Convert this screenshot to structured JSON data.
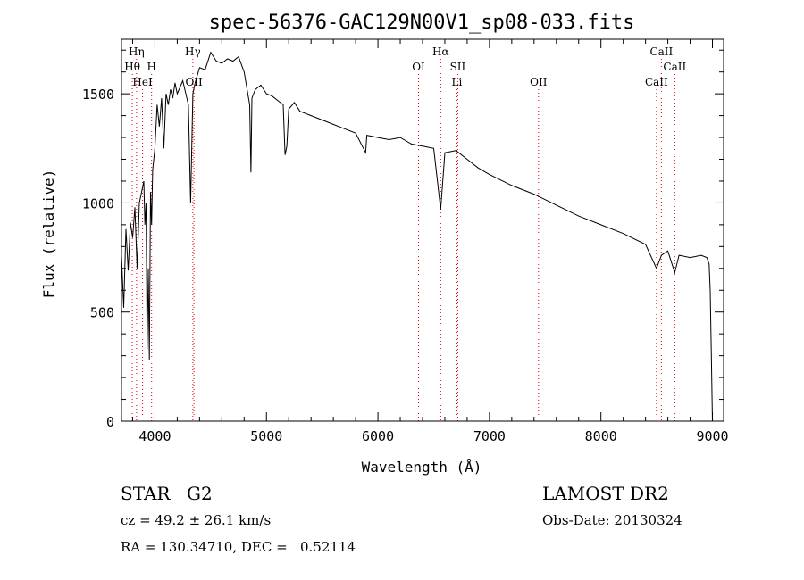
{
  "chart_data": {
    "type": "line",
    "title": "spec-56376-GAC129N00V1_sp08-033.fits",
    "xlabel": "Wavelength (Å)",
    "ylabel": "Flux (relative)",
    "xlim": [
      3700,
      9100
    ],
    "ylim": [
      0,
      1750
    ],
    "xticks": [
      4000,
      5000,
      6000,
      7000,
      8000,
      9000
    ],
    "yticks": [
      0,
      500,
      1000,
      1500
    ],
    "grid": false,
    "series": [
      {
        "x": [
          3700,
          3720,
          3740,
          3760,
          3780,
          3800,
          3820,
          3840,
          3860,
          3880,
          3900,
          3910,
          3920,
          3930,
          3940,
          3950,
          3960,
          3970,
          3980,
          4000,
          4020,
          4040,
          4060,
          4080,
          4100,
          4120,
          4140,
          4160,
          4180,
          4200,
          4250,
          4300,
          4320,
          4340,
          4360,
          4400,
          4450,
          4500,
          4550,
          4600,
          4650,
          4700,
          4750,
          4800,
          4850,
          4861,
          4870,
          4900,
          4950,
          5000,
          5050,
          5100,
          5150,
          5167,
          5183,
          5200,
          5250,
          5300,
          5400,
          5500,
          5600,
          5700,
          5800,
          5890,
          5900,
          6000,
          6100,
          6200,
          6300,
          6400,
          6500,
          6563,
          6600,
          6700,
          6800,
          6900,
          7000,
          7200,
          7400,
          7600,
          7800,
          8000,
          8200,
          8400,
          8498,
          8542,
          8600,
          8662,
          8700,
          8800,
          8900,
          8950,
          8970,
          8980,
          8990,
          9000
        ],
        "values": [
          760,
          520,
          880,
          690,
          910,
          840,
          980,
          700,
          1000,
          1050,
          1100,
          900,
          1000,
          330,
          700,
          280,
          1050,
          900,
          1150,
          1250,
          1450,
          1350,
          1480,
          1250,
          1500,
          1450,
          1520,
          1480,
          1550,
          1500,
          1560,
          1450,
          1000,
          1500,
          1550,
          1620,
          1610,
          1690,
          1650,
          1640,
          1660,
          1650,
          1670,
          1600,
          1450,
          1140,
          1480,
          1520,
          1540,
          1500,
          1490,
          1470,
          1450,
          1220,
          1260,
          1430,
          1460,
          1420,
          1400,
          1380,
          1360,
          1340,
          1320,
          1230,
          1310,
          1300,
          1290,
          1300,
          1270,
          1260,
          1250,
          970,
          1230,
          1240,
          1200,
          1160,
          1130,
          1080,
          1040,
          990,
          940,
          900,
          860,
          810,
          700,
          760,
          780,
          680,
          760,
          750,
          760,
          750,
          720,
          600,
          300,
          0
        ]
      }
    ],
    "line_markers": [
      {
        "label": "Hη",
        "wavelength": 3835,
        "row": 1
      },
      {
        "label": "Hθ",
        "wavelength": 3797,
        "row": 2
      },
      {
        "label": "H",
        "wavelength": 3970,
        "row": 2
      },
      {
        "label": "HeI",
        "wavelength": 3889,
        "row": 3
      },
      {
        "label": "Hγ",
        "wavelength": 4340,
        "row": 1
      },
      {
        "label": "OII",
        "wavelength": 4350,
        "row": 3
      },
      {
        "label": "OI",
        "wavelength": 6364,
        "row": 2
      },
      {
        "label": "Hα",
        "wavelength": 6563,
        "row": 1
      },
      {
        "label": "SII",
        "wavelength": 6716,
        "row": 2
      },
      {
        "label": "Li",
        "wavelength": 6708,
        "row": 3
      },
      {
        "label": "OII",
        "wavelength": 7440,
        "row": 3
      },
      {
        "label": "CaII",
        "wavelength": 8542,
        "row": 1
      },
      {
        "label": "CaII",
        "wavelength": 8662,
        "row": 2
      },
      {
        "label": "CaII",
        "wavelength": 8498,
        "row": 3
      }
    ],
    "colors": {
      "line": "#000000",
      "markers": "#e00000",
      "axes": "#000000"
    }
  },
  "info": {
    "object_class": "STAR",
    "subclass": "G2",
    "survey": "LAMOST DR2",
    "redshift": "cz = 49.2 ± 26.1 km/s",
    "obs_date": "Obs-Date: 20130324",
    "coords": "RA = 130.34710, DEC =   0.52114"
  }
}
